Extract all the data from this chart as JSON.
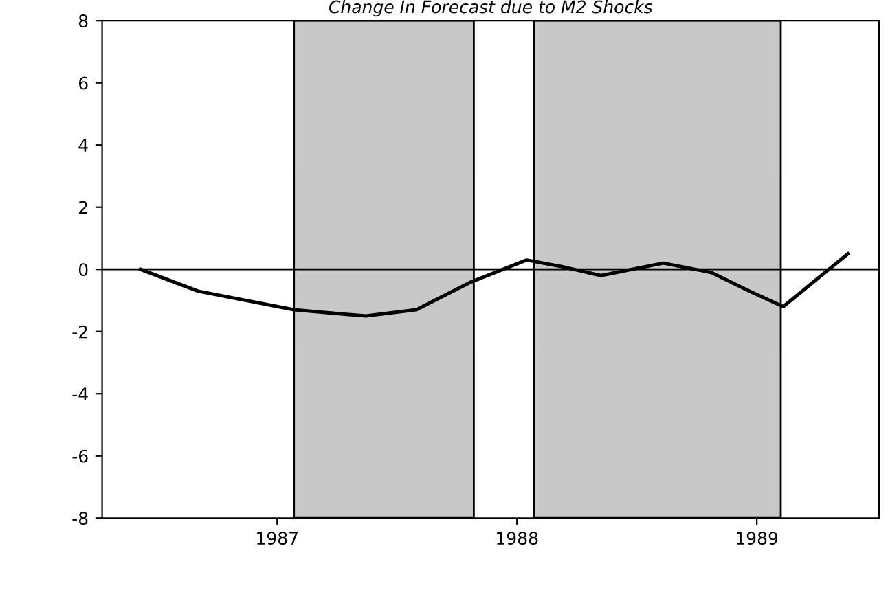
{
  "chart_data": {
    "type": "line",
    "title": "Change In Forecast due to M2 Shocks",
    "x": [
      1986.43,
      1986.67,
      1987.07,
      1987.37,
      1987.58,
      1987.81,
      1988.04,
      1988.18,
      1988.35,
      1988.61,
      1988.81,
      1988.97,
      1989.11,
      1989.38
    ],
    "series": [
      {
        "color": "#000000",
        "values": [
          0,
          -0.7,
          -1.3,
          -1.5,
          -1.3,
          -0.4,
          0.3,
          0.1,
          -0.2,
          0.2,
          -0.1,
          -0.7,
          -1.2,
          0.5
        ]
      }
    ],
    "xlim": [
      1986.27,
      1989.51
    ],
    "xticks": [
      1987,
      1988,
      1989
    ],
    "ylim": [
      -8,
      8
    ],
    "yticks": [
      -8,
      -6,
      -4,
      -2,
      0,
      2,
      4,
      6,
      8
    ],
    "ref_lines": [
      {
        "axis": "y",
        "value": 0,
        "color": "#000000"
      }
    ],
    "bands": [
      {
        "axis": "x",
        "from": 1987.07,
        "to": 1987.82,
        "color": "#c8c8c8"
      },
      {
        "axis": "x",
        "from": 1988.07,
        "to": 1989.1,
        "color": "#c8c8c8"
      }
    ],
    "grid": false,
    "legend": false
  }
}
